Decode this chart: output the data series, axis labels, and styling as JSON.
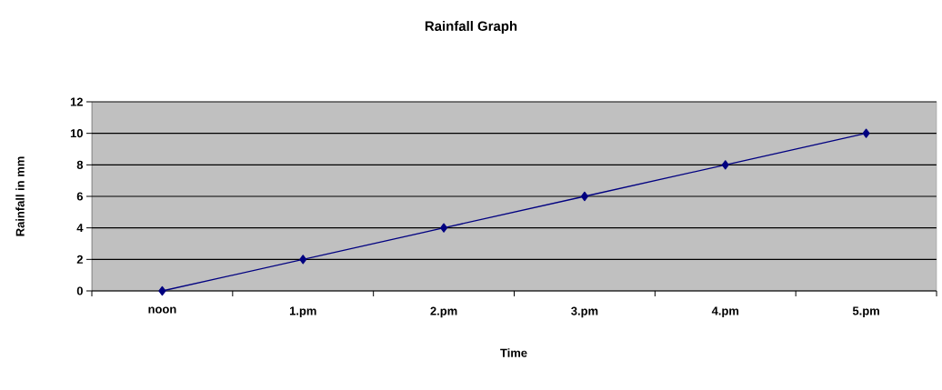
{
  "chart_data": {
    "type": "line",
    "title": "Rainfall Graph",
    "xlabel": "Time",
    "ylabel": "Rainfall in mm",
    "categories": [
      "noon",
      "1.pm",
      "2.pm",
      "3.pm",
      "4.pm",
      "5.pm"
    ],
    "series": [
      {
        "color": "#000080",
        "values": [
          0,
          2,
          4,
          6,
          8,
          10
        ]
      }
    ],
    "ylim": [
      0,
      12
    ],
    "yticks": [
      0,
      2,
      4,
      6,
      8,
      10,
      12
    ],
    "grid": "y",
    "marker": "diamond",
    "line_style": "solid"
  }
}
